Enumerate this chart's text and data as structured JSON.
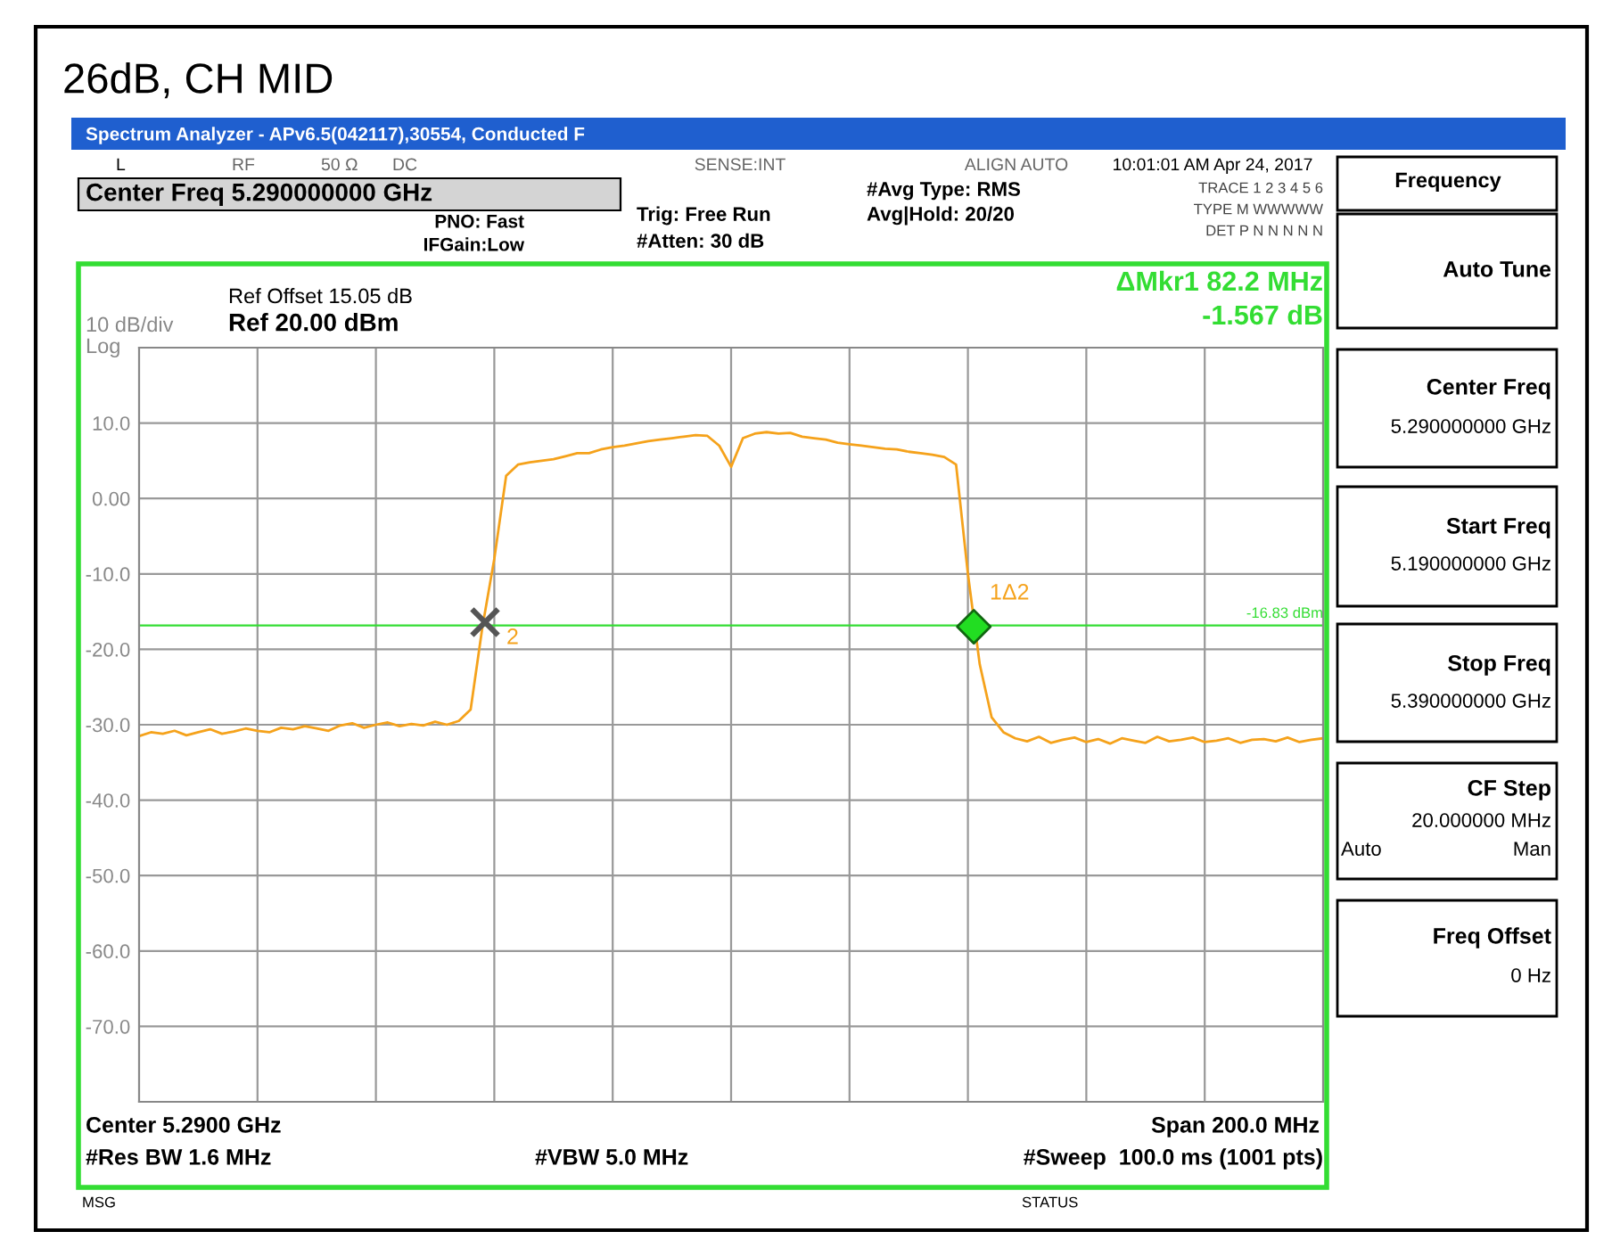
{
  "chart_data": {
    "type": "line",
    "title": "26dB, CH MID",
    "categories": [
      null,
      null,
      null,
      null,
      null,
      null,
      null,
      null,
      null,
      null,
      null,
      null,
      null,
      null,
      null,
      null,
      null,
      null,
      null,
      null,
      null,
      null,
      null,
      null,
      null,
      null,
      null,
      null,
      null,
      null,
      null,
      null,
      null,
      null,
      null,
      null,
      null,
      null,
      null,
      null,
      null,
      null,
      null,
      null,
      null,
      null,
      null,
      null,
      null,
      null,
      null,
      null,
      null,
      null,
      null,
      null,
      null,
      null,
      null,
      null,
      null,
      null,
      null,
      null,
      null,
      null,
      null,
      null,
      null,
      null,
      null,
      null,
      null,
      null,
      null,
      null,
      null,
      null,
      null,
      null,
      null,
      null,
      null,
      null,
      null,
      null,
      null,
      null,
      null,
      null,
      null,
      null,
      null,
      null,
      null,
      null,
      null,
      null,
      null,
      null,
      null
    ],
    "series": [
      {
        "color": "#f5a21b",
        "values": [
          -31.5,
          -31,
          -31.2,
          -30.8,
          -31.4,
          -31,
          -30.6,
          -31.2,
          -30.9,
          -30.5,
          -30.8,
          -31,
          -30.4,
          -30.6,
          -30.2,
          -30.5,
          -30.8,
          -30.1,
          -29.8,
          -30.4,
          -30,
          -29.7,
          -30.2,
          -29.9,
          -30.1,
          -29.6,
          -30,
          -29.5,
          -28,
          -17,
          -8,
          3,
          4.5,
          4.8,
          5,
          5.2,
          5.6,
          6,
          6,
          6.5,
          6.8,
          7,
          7.3,
          7.6,
          7.8,
          8,
          8.2,
          8.4,
          8.3,
          7,
          4.2,
          8,
          8.6,
          8.8,
          8.6,
          8.7,
          8.2,
          8,
          7.8,
          7.4,
          7.2,
          7,
          6.8,
          6.6,
          6.5,
          6.2,
          6,
          5.8,
          5.5,
          4.5,
          -10,
          -22,
          -29,
          -31,
          -31.8,
          -32.2,
          -31.6,
          -32.4,
          -32,
          -31.7,
          -32.3,
          -31.9,
          -32.5,
          -31.8,
          -32.1,
          -32.4,
          -31.6,
          -32.2,
          -32,
          -31.7,
          -32.3,
          -32.1,
          -31.8,
          -32.4,
          -32,
          -31.9,
          -32.2,
          -31.7,
          -32.3,
          -32,
          -31.8
        ]
      }
    ],
    "ylim": [
      -80,
      20
    ],
    "yticks": [
      {
        "value": 20,
        "label": null
      },
      {
        "value": 10,
        "label": "10.0"
      },
      {
        "value": 0,
        "label": "0.00"
      },
      {
        "value": -10,
        "label": "-10.0"
      },
      {
        "value": -20,
        "label": "-20.0"
      },
      {
        "value": -30,
        "label": "-30.0"
      },
      {
        "value": -40,
        "label": "-40.0"
      },
      {
        "value": -50,
        "label": "-50.0"
      },
      {
        "value": -60,
        "label": "-60.0"
      },
      {
        "value": -70,
        "label": "-70.0"
      },
      {
        "value": -80,
        "label": null
      }
    ],
    "grid": true,
    "tick_labels": "y",
    "line_style": "solid",
    "marker": "none",
    "ref_lines": [
      {
        "axis": "y",
        "value": -16.83,
        "label": "-16.83 dBm",
        "color": "#33dd33"
      }
    ],
    "annotations": [
      "Spectrum Analyzer - APv6.5(042117),30554, Conducted F",
      "L",
      "RF",
      "50 Ω",
      "DC",
      "SENSE:INT",
      "ALIGN AUTO",
      "10:01:01 AM Apr 24, 2017",
      "Center Freq 5.290000000 GHz",
      "PNO: Fast",
      "IFGain:Low",
      "Trig: Free Run",
      "#Atten: 30 dB",
      "#Avg Type: RMS",
      "Avg|Hold: 20/20",
      "TRACE 1 2 3 4 5 6",
      "TYPE M WWWWW",
      "DET P N N N N N",
      "Ref Offset 15.05 dB",
      "Ref 20.00 dBm",
      "10 dB/div",
      "Log",
      "ΔMkr1 82.2 MHz",
      "-1.567 dB",
      "1Δ2",
      "2",
      "Center 5.2900 GHz",
      "Span 200.0 MHz",
      "#Res BW 1.6 MHz",
      "#VBW 5.0 MHz",
      "#Sweep  100.0 ms (1001 pts)",
      "MSG",
      "STATUS",
      "Frequency",
      "Auto Tune",
      "Center Freq",
      "5.290000000 GHz",
      "Start Freq",
      "5.190000000 GHz",
      "Stop Freq",
      "5.390000000 GHz",
      "CF Step",
      "20.000000 MHz",
      "Auto",
      "Man",
      "Freq Offset",
      "0 Hz"
    ]
  }
}
